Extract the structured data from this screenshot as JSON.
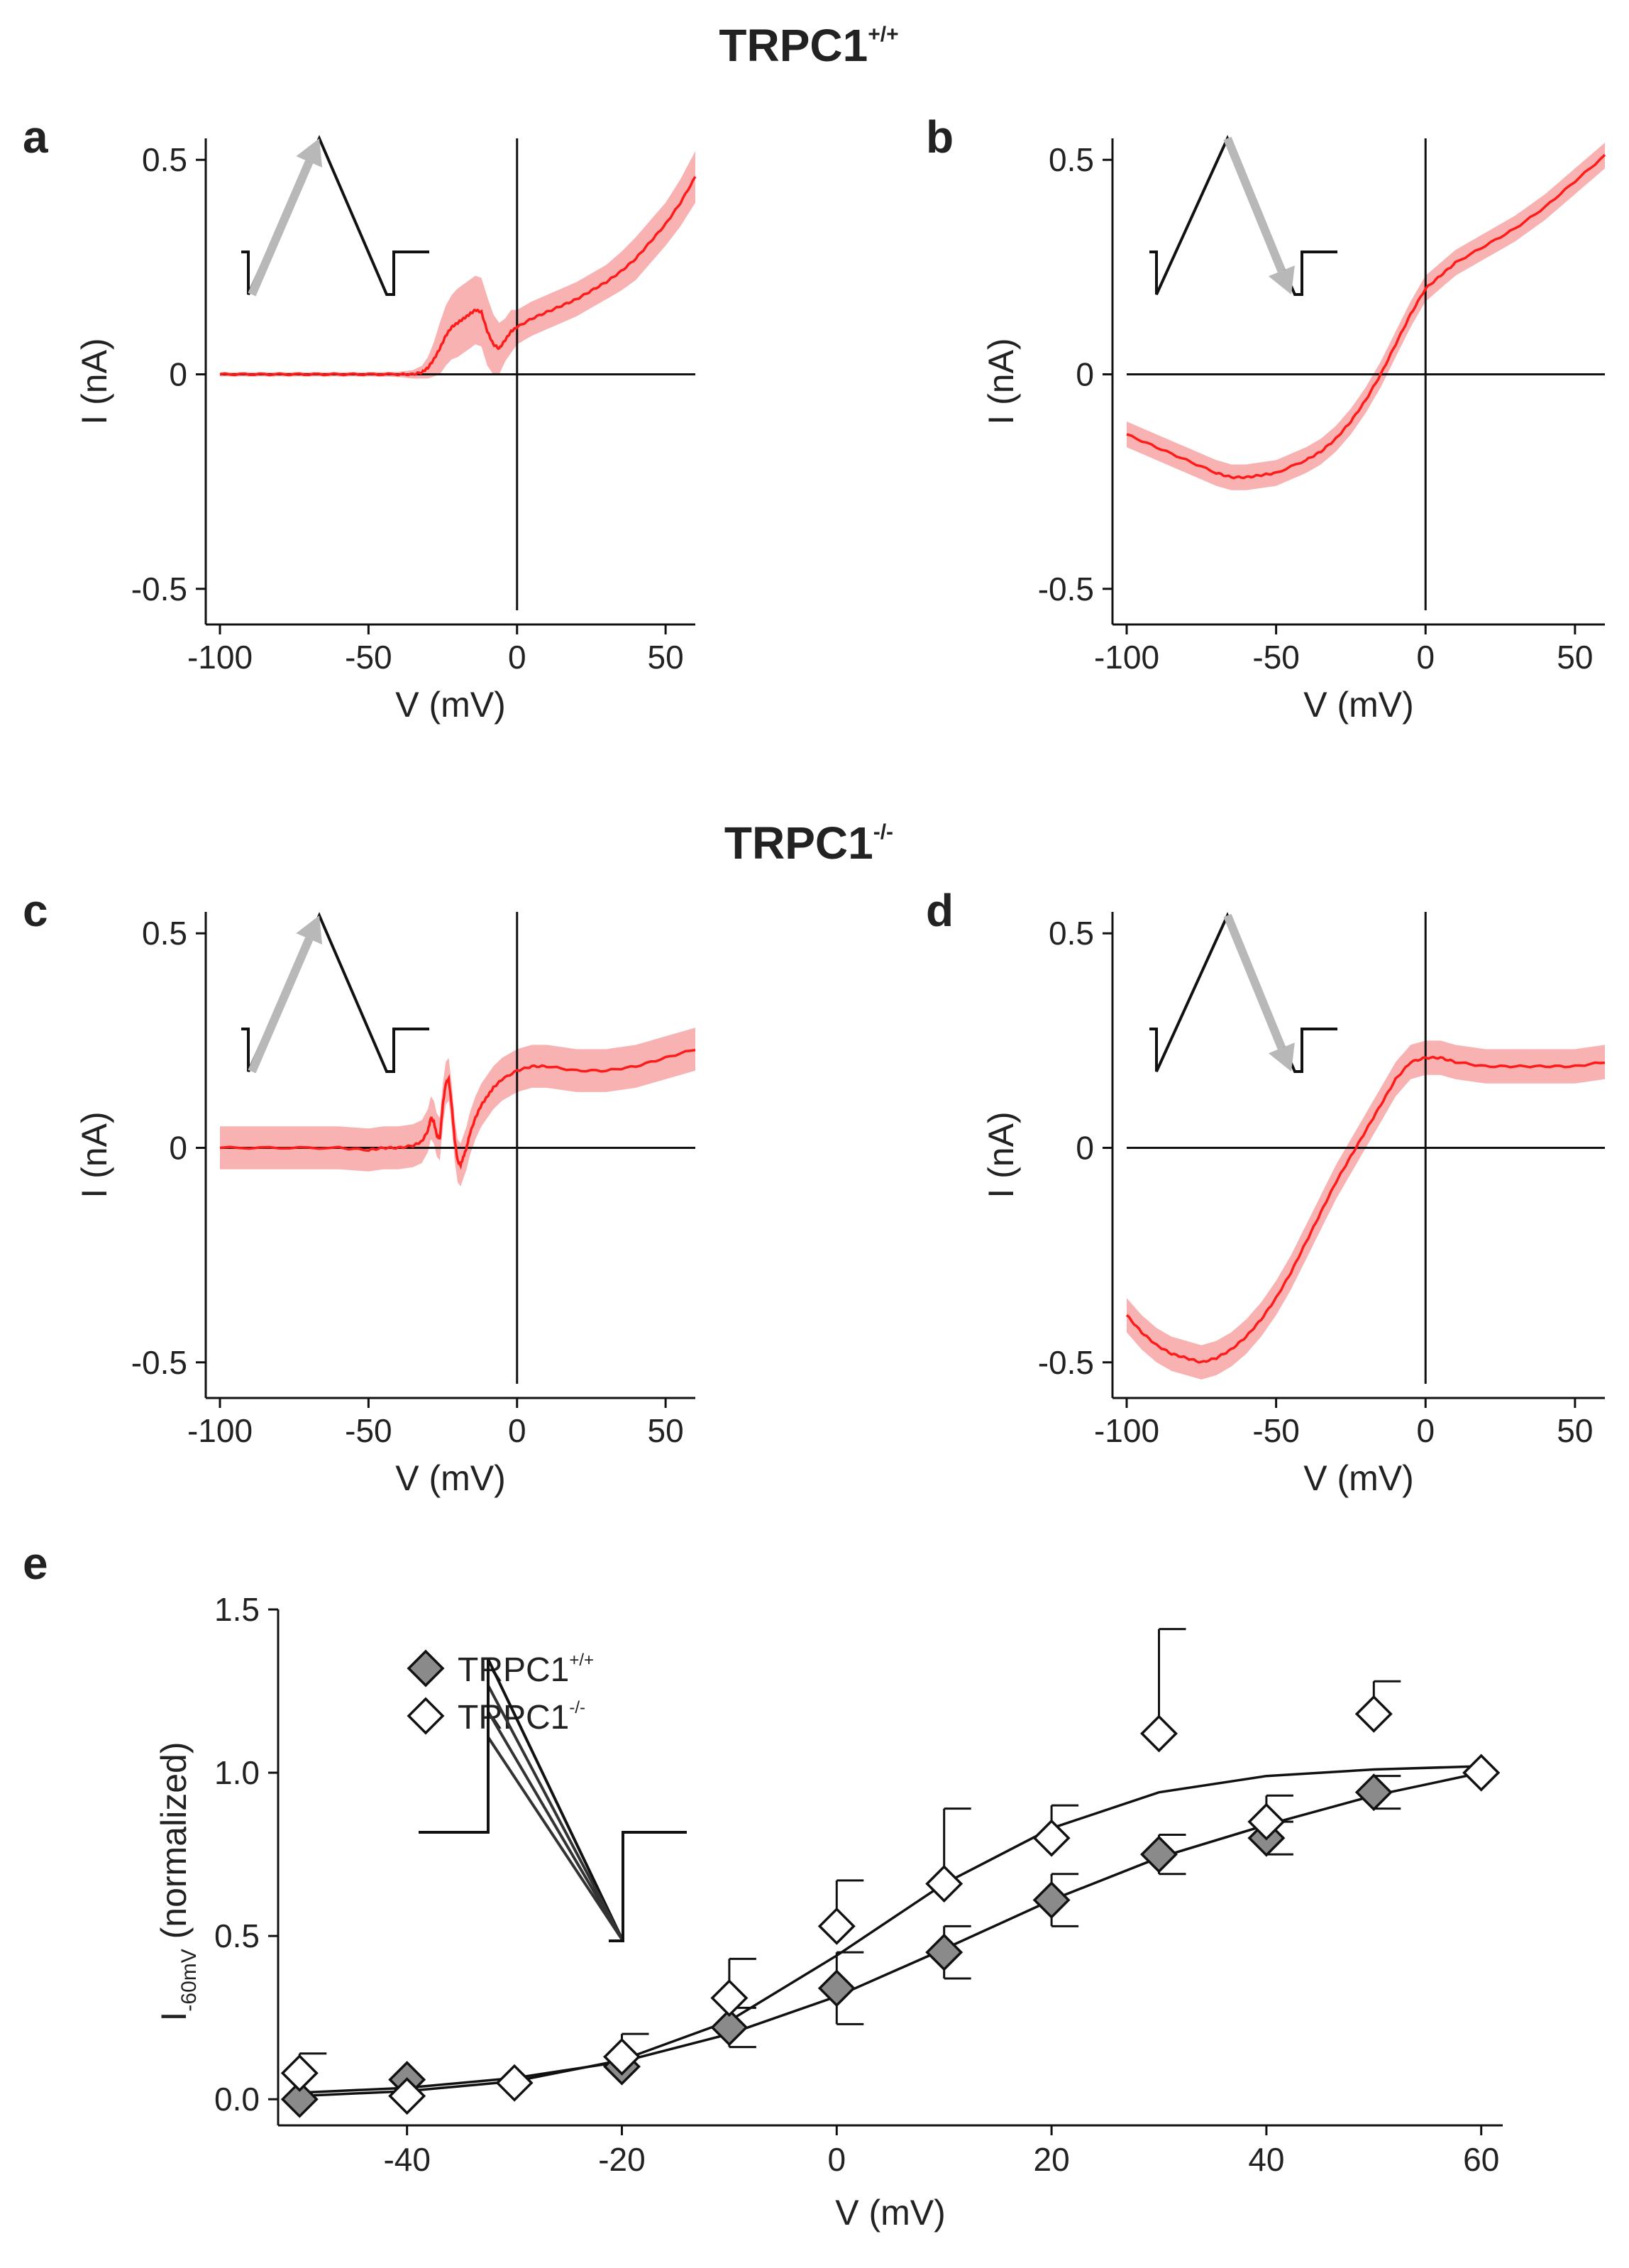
{
  "figure": {
    "group_top": {
      "title": "TRPC1",
      "superscript": "+/+"
    },
    "group_bottom": {
      "title": "TRPC1",
      "superscript": "-/-"
    }
  },
  "colors": {
    "trace": "#ff1a1a",
    "band": "#f9b2b2",
    "axis": "#111111",
    "inset": "#111111",
    "arrow": "#b8b8b8",
    "marker_wt": "#8a8a8a",
    "marker_ko": "#ffffff"
  },
  "chart_data": [
    {
      "id": "a",
      "type": "line",
      "panel_label": "a",
      "title": "",
      "xlabel": "V (mV)",
      "ylabel": "I (nA)",
      "xlim": [
        -100,
        60
      ],
      "ylim": [
        -0.55,
        0.55
      ],
      "xticks": [
        -100,
        -50,
        0,
        50
      ],
      "xtick_labels": [
        "-100",
        "-50",
        "0",
        "50"
      ],
      "yticks": [
        -0.5,
        0,
        0.5
      ],
      "ytick_labels": [
        "-0.5",
        "0",
        "0.5"
      ],
      "zero_lines": true,
      "inset": "ramp-up-arrow",
      "error_band": "mean ± SEM (shaded)",
      "series": [
        {
          "name": "mean current",
          "x": [
            -100,
            -90,
            -80,
            -70,
            -60,
            -50,
            -40,
            -35,
            -32,
            -30,
            -28,
            -26,
            -24,
            -22,
            -20,
            -18,
            -16,
            -14,
            -12,
            -10,
            -8,
            -6,
            -4,
            -2,
            0,
            5,
            10,
            15,
            20,
            25,
            30,
            35,
            40,
            45,
            50,
            55,
            60
          ],
          "y": [
            0,
            0,
            0,
            0,
            0,
            0,
            0,
            0,
            0.005,
            0.015,
            0.035,
            0.06,
            0.09,
            0.11,
            0.12,
            0.13,
            0.14,
            0.15,
            0.145,
            0.1,
            0.07,
            0.06,
            0.08,
            0.1,
            0.11,
            0.13,
            0.145,
            0.16,
            0.175,
            0.195,
            0.215,
            0.24,
            0.27,
            0.31,
            0.35,
            0.4,
            0.46
          ],
          "err": [
            0.005,
            0.005,
            0.005,
            0.005,
            0.005,
            0.005,
            0.006,
            0.01,
            0.015,
            0.025,
            0.04,
            0.06,
            0.07,
            0.075,
            0.08,
            0.08,
            0.08,
            0.08,
            0.08,
            0.08,
            0.07,
            0.06,
            0.05,
            0.05,
            0.04,
            0.04,
            0.04,
            0.04,
            0.04,
            0.04,
            0.04,
            0.045,
            0.05,
            0.05,
            0.05,
            0.055,
            0.06
          ]
        }
      ]
    },
    {
      "id": "b",
      "type": "line",
      "panel_label": "b",
      "title": "",
      "xlabel": "V (mV)",
      "ylabel": "I (nA)",
      "xlim": [
        -100,
        60
      ],
      "ylim": [
        -0.55,
        0.55
      ],
      "xticks": [
        -100,
        -50,
        0,
        50
      ],
      "xtick_labels": [
        "-100",
        "-50",
        "0",
        "50"
      ],
      "yticks": [
        -0.5,
        0,
        0.5
      ],
      "ytick_labels": [
        "-0.5",
        "0",
        "0.5"
      ],
      "zero_lines": true,
      "inset": "ramp-down-arrow",
      "error_band": "mean ± SEM (shaded)",
      "series": [
        {
          "name": "mean current",
          "x": [
            -100,
            -90,
            -80,
            -70,
            -65,
            -60,
            -55,
            -50,
            -40,
            -35,
            -30,
            -25,
            -20,
            -15,
            -10,
            -5,
            0,
            5,
            10,
            20,
            30,
            40,
            50,
            60
          ],
          "y": [
            -0.14,
            -0.17,
            -0.2,
            -0.23,
            -0.24,
            -0.24,
            -0.235,
            -0.23,
            -0.2,
            -0.18,
            -0.15,
            -0.11,
            -0.06,
            0.0,
            0.07,
            0.14,
            0.2,
            0.23,
            0.26,
            0.3,
            0.34,
            0.39,
            0.45,
            0.51
          ]
        }
      ],
      "error_band_width": 0.03
    },
    {
      "id": "c",
      "type": "line",
      "panel_label": "c",
      "title": "",
      "xlabel": "V (mV)",
      "ylabel": "I (nA)",
      "xlim": [
        -100,
        60
      ],
      "ylim": [
        -0.55,
        0.55
      ],
      "xticks": [
        -100,
        -50,
        0,
        50
      ],
      "xtick_labels": [
        "-100",
        "-50",
        "0",
        "50"
      ],
      "yticks": [
        -0.5,
        0,
        0.5
      ],
      "ytick_labels": [
        "-0.5",
        "0",
        "0.5"
      ],
      "zero_lines": true,
      "inset": "ramp-up-arrow",
      "error_band": "mean ± SEM (shaded)",
      "series": [
        {
          "name": "mean current",
          "x": [
            -100,
            -80,
            -60,
            -50,
            -45,
            -40,
            -35,
            -32,
            -30,
            -29,
            -28,
            -27,
            -26,
            -25,
            -24,
            -23,
            -22,
            -21,
            -20,
            -19,
            -18,
            -17,
            -16,
            -14,
            -12,
            -10,
            -8,
            -5,
            0,
            5,
            10,
            20,
            30,
            40,
            50,
            60
          ],
          "y": [
            0,
            0,
            0,
            -0.005,
            0,
            0,
            0.005,
            0.015,
            0.04,
            0.07,
            0.06,
            0.03,
            0.02,
            0.1,
            0.15,
            0.16,
            0.1,
            0.02,
            -0.03,
            -0.04,
            -0.02,
            0.0,
            0.03,
            0.07,
            0.1,
            0.12,
            0.14,
            0.16,
            0.18,
            0.19,
            0.19,
            0.18,
            0.18,
            0.19,
            0.21,
            0.23
          ]
        }
      ],
      "error_band_width": 0.05
    },
    {
      "id": "d",
      "type": "line",
      "panel_label": "d",
      "title": "",
      "xlabel": "V (mV)",
      "ylabel": "I (nA)",
      "xlim": [
        -100,
        60
      ],
      "ylim": [
        -0.55,
        0.55
      ],
      "xticks": [
        -100,
        -50,
        0,
        50
      ],
      "xtick_labels": [
        "-100",
        "-50",
        "0",
        "50"
      ],
      "yticks": [
        -0.5,
        0,
        0.5
      ],
      "ytick_labels": [
        "-0.5",
        "0",
        "0.5"
      ],
      "zero_lines": true,
      "inset": "ramp-down-arrow",
      "error_band": "mean ± SEM (shaded)",
      "series": [
        {
          "name": "mean current",
          "x": [
            -100,
            -95,
            -90,
            -85,
            -80,
            -75,
            -70,
            -65,
            -60,
            -55,
            -50,
            -45,
            -40,
            -35,
            -30,
            -25,
            -20,
            -15,
            -10,
            -5,
            0,
            5,
            10,
            20,
            30,
            40,
            50,
            60
          ],
          "y": [
            -0.39,
            -0.43,
            -0.46,
            -0.48,
            -0.49,
            -0.5,
            -0.49,
            -0.47,
            -0.44,
            -0.4,
            -0.35,
            -0.29,
            -0.22,
            -0.15,
            -0.08,
            -0.02,
            0.04,
            0.1,
            0.16,
            0.2,
            0.21,
            0.21,
            0.2,
            0.19,
            0.19,
            0.19,
            0.19,
            0.2
          ]
        }
      ],
      "error_band_width": 0.04
    },
    {
      "id": "e",
      "type": "scatter",
      "panel_label": "e",
      "title": "",
      "xlabel": "V (mV)",
      "ylabel_main": "I",
      "ylabel_sub": "-60mV",
      "ylabel_rest": " (normalized)",
      "xlim": [
        -52,
        62
      ],
      "ylim": [
        -0.08,
        1.5
      ],
      "xticks": [
        -40,
        -20,
        0,
        20,
        40,
        60
      ],
      "xtick_labels": [
        "-40",
        "-20",
        "0",
        "20",
        "40",
        "60"
      ],
      "yticks": [
        0.0,
        0.5,
        1.0,
        1.5
      ],
      "ytick_labels": [
        "0.0",
        "0.5",
        "1.0",
        "1.5"
      ],
      "inset": "family-of-ramps",
      "legend": [
        {
          "name": "TRPC1",
          "sup": "+/+",
          "marker": "filled-diamond"
        },
        {
          "name": "TRPC1",
          "sup": "-/-",
          "marker": "open-diamond"
        }
      ],
      "series": [
        {
          "name": "TRPC1+/+",
          "marker": "filled-diamond",
          "x": [
            -50,
            -40,
            -20,
            -10,
            0,
            10,
            20,
            30,
            40,
            50,
            60
          ],
          "y": [
            0.0,
            0.06,
            0.1,
            0.22,
            0.34,
            0.45,
            0.61,
            0.75,
            0.8,
            0.94,
            1.0
          ],
          "err": [
            0.0,
            0.0,
            0.0,
            0.06,
            0.11,
            0.08,
            0.08,
            0.06,
            0.05,
            0.05,
            0.0
          ],
          "fit": [
            [
              -50,
              0.02
            ],
            [
              -40,
              0.035
            ],
            [
              -30,
              0.065
            ],
            [
              -20,
              0.115
            ],
            [
              -10,
              0.2
            ],
            [
              0,
              0.315
            ],
            [
              10,
              0.46
            ],
            [
              20,
              0.61
            ],
            [
              30,
              0.74
            ],
            [
              40,
              0.84
            ],
            [
              50,
              0.93
            ],
            [
              60,
              1.0
            ]
          ]
        },
        {
          "name": "TRPC1-/-",
          "marker": "open-diamond",
          "x": [
            -50,
            -40,
            -30,
            -20,
            -10,
            0,
            10,
            20,
            30,
            40,
            50,
            60
          ],
          "y": [
            0.08,
            0.01,
            0.05,
            0.13,
            0.31,
            0.53,
            0.66,
            0.8,
            1.12,
            0.85,
            1.18,
            1.0
          ],
          "err": [
            0.06,
            0.0,
            0.0,
            0.07,
            0.12,
            0.14,
            0.23,
            0.1,
            0.32,
            0.08,
            0.1,
            0.0
          ],
          "fit": [
            [
              -50,
              0.01
            ],
            [
              -40,
              0.025
            ],
            [
              -30,
              0.055
            ],
            [
              -20,
              0.12
            ],
            [
              -10,
              0.24
            ],
            [
              0,
              0.44
            ],
            [
              10,
              0.66
            ],
            [
              20,
              0.83
            ],
            [
              30,
              0.94
            ],
            [
              40,
              0.99
            ],
            [
              50,
              1.01
            ],
            [
              60,
              1.02
            ]
          ]
        }
      ]
    }
  ]
}
